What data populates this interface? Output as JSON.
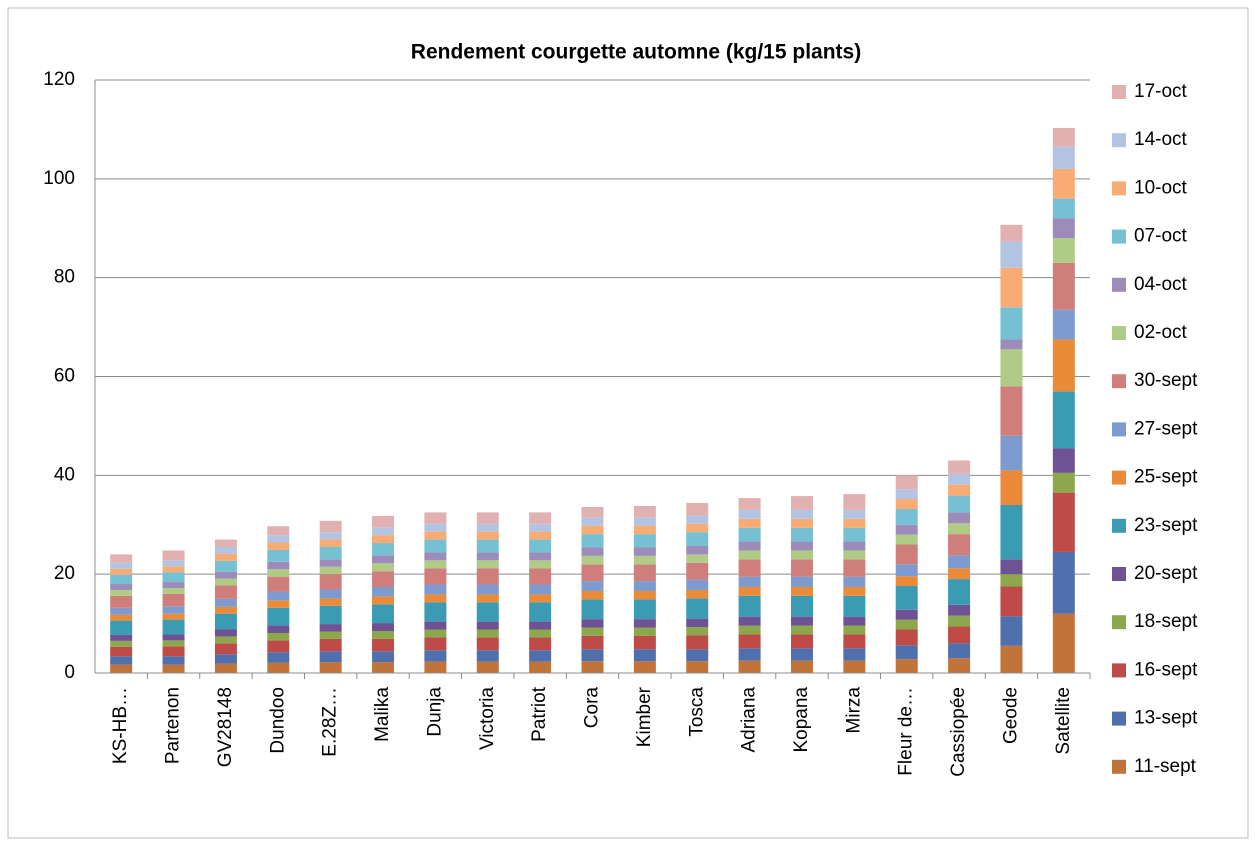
{
  "chart_data": {
    "type": "stacked_bar",
    "title": "Rendement courgette automne (kg/15 plants)",
    "categories": [
      "KS-HB…",
      "Partenon",
      "GV28148",
      "Dundoo",
      "E.28Z…",
      "Malika",
      "Dunja",
      "Victoria",
      "Patriot",
      "Cora",
      "Kimber",
      "Tosca",
      "Adriana",
      "Kopana",
      "Mirza",
      "Fleur de…",
      "Cassiopée",
      "Geode",
      "Satellite"
    ],
    "ylim": [
      0,
      120
    ],
    "yticks": [
      0,
      20,
      40,
      60,
      80,
      100,
      120
    ],
    "grid": true,
    "legend": "right",
    "series": [
      {
        "name": "11-sept",
        "color": "#c0743a",
        "values": [
          1.7,
          1.7,
          1.9,
          2.1,
          2.2,
          2.2,
          2.3,
          2.3,
          2.3,
          2.4,
          2.4,
          2.4,
          2.5,
          2.5,
          2.5,
          2.8,
          3.0,
          5.5,
          12
        ]
      },
      {
        "name": "13-sept",
        "color": "#4f6fad",
        "values": [
          1.7,
          1.7,
          1.9,
          2.1,
          2.2,
          2.2,
          2.3,
          2.3,
          2.3,
          2.4,
          2.4,
          2.4,
          2.5,
          2.5,
          2.5,
          2.8,
          3.0,
          6,
          12.5
        ]
      },
      {
        "name": "16-sept",
        "color": "#be4b48",
        "values": [
          1.9,
          2.0,
          2.2,
          2.4,
          2.5,
          2.5,
          2.6,
          2.6,
          2.6,
          2.7,
          2.7,
          2.8,
          2.8,
          2.8,
          2.8,
          3.2,
          3.4,
          6,
          12
        ]
      },
      {
        "name": "18-sept",
        "color": "#8da74c",
        "values": [
          1.2,
          1.2,
          1.4,
          1.5,
          1.5,
          1.6,
          1.6,
          1.6,
          1.6,
          1.7,
          1.7,
          1.7,
          1.8,
          1.8,
          1.8,
          2,
          2.2,
          2.5,
          4
        ]
      },
      {
        "name": "20-sept",
        "color": "#6f5294",
        "values": [
          1.2,
          1.2,
          1.4,
          1.5,
          1.5,
          1.6,
          1.6,
          1.6,
          1.6,
          1.7,
          1.7,
          1.7,
          1.8,
          1.8,
          1.8,
          2,
          2.2,
          3,
          5
        ]
      },
      {
        "name": "23-sept",
        "color": "#3a9bb3",
        "values": [
          2.9,
          3.0,
          3.2,
          3.6,
          3.7,
          3.8,
          3.9,
          3.9,
          3.9,
          4.0,
          4.0,
          4.1,
          4.2,
          4.2,
          4.2,
          4.8,
          5.2,
          11,
          11.5
        ]
      },
      {
        "name": "25-sept",
        "color": "#ea8b3a",
        "values": [
          1.2,
          1.2,
          1.4,
          1.5,
          1.5,
          1.6,
          1.6,
          1.6,
          1.6,
          1.7,
          1.7,
          1.7,
          1.8,
          1.8,
          1.8,
          2,
          2.2,
          7,
          10.5
        ]
      },
      {
        "name": "27-sept",
        "color": "#7d9bcf",
        "values": [
          1.4,
          1.5,
          1.6,
          1.8,
          1.8,
          1.9,
          2.0,
          2.0,
          2.0,
          2.0,
          2.0,
          2.1,
          2.1,
          2.1,
          2.1,
          2.4,
          2.6,
          7,
          6
        ]
      },
      {
        "name": "30-sept",
        "color": "#d07e7b",
        "values": [
          2.4,
          2.5,
          2.7,
          3.0,
          3.1,
          3.2,
          3.3,
          3.3,
          3.3,
          3.4,
          3.4,
          3.4,
          3.5,
          3.5,
          3.5,
          4,
          4.3,
          10,
          9.5
        ]
      },
      {
        "name": "02-oct",
        "color": "#afcb86",
        "values": [
          1.2,
          1.2,
          1.4,
          1.5,
          1.5,
          1.6,
          1.6,
          1.6,
          1.6,
          1.7,
          1.7,
          1.7,
          1.8,
          1.8,
          1.8,
          2,
          2.2,
          7.5,
          5
        ]
      },
      {
        "name": "04-oct",
        "color": "#9d8cba",
        "values": [
          1.2,
          1.2,
          1.4,
          1.5,
          1.5,
          1.6,
          1.6,
          1.6,
          1.6,
          1.7,
          1.7,
          1.7,
          1.8,
          1.8,
          1.8,
          2,
          2.2,
          2,
          4
        ]
      },
      {
        "name": "07-oct",
        "color": "#76c0d3",
        "values": [
          1.9,
          2.0,
          2.2,
          2.4,
          2.5,
          2.5,
          2.6,
          2.6,
          2.6,
          2.7,
          2.7,
          2.8,
          2.8,
          2.8,
          2.8,
          3.2,
          3.4,
          6.5,
          4
        ]
      },
      {
        "name": "10-oct",
        "color": "#f8ac73",
        "values": [
          1.2,
          1.2,
          1.4,
          1.5,
          1.5,
          1.6,
          1.6,
          1.6,
          1.6,
          1.7,
          1.7,
          1.7,
          1.8,
          1.8,
          1.8,
          2,
          2.2,
          8,
          6
        ]
      },
      {
        "name": "14-oct",
        "color": "#b3c4e3",
        "values": [
          1.2,
          1.2,
          1.4,
          1.5,
          1.5,
          1.6,
          1.6,
          1.6,
          1.6,
          1.7,
          1.7,
          1.7,
          1.8,
          1.8,
          1.8,
          2,
          2.2,
          5.3,
          4.5
        ]
      },
      {
        "name": "17-oct",
        "color": "#e0b1b0",
        "values": [
          1.7,
          2.0,
          1.5,
          1.8,
          2.3,
          2.3,
          2.3,
          2.3,
          2.3,
          2.1,
          2.3,
          2.5,
          2.4,
          2.8,
          3.2,
          2.8,
          2.7,
          3.4,
          3.8
        ]
      }
    ]
  }
}
